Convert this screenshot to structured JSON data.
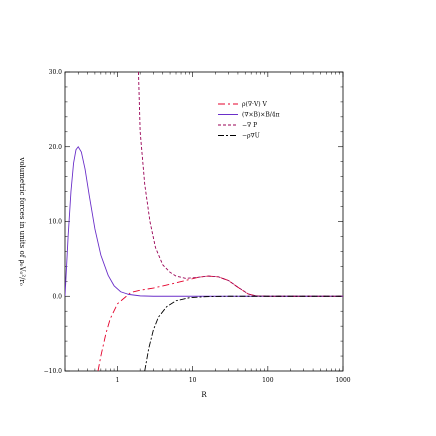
{
  "chart_data": {
    "type": "line",
    "title": "",
    "xlabel": "R",
    "ylabel": "volumetric forces in units of ρ₀V₀²/r₀",
    "xscale": "log",
    "xlim": [
      0.2,
      1000
    ],
    "ylim": [
      -10,
      30
    ],
    "x_ticks": [
      1,
      10,
      100,
      1000
    ],
    "x_tick_labels": [
      "1",
      "10",
      "100",
      "1000"
    ],
    "y_ticks": [
      -10,
      0,
      10,
      20,
      30
    ],
    "y_tick_labels": [
      "−10.0",
      "0.0",
      "10.0",
      "20.0",
      "30.0"
    ],
    "grid": false,
    "legend_position": "top-right",
    "series": [
      {
        "name": "ρ(∇·V) V",
        "color": "#e4002b",
        "dash": "7,3,2,3",
        "points": [
          [
            0.55,
            -10
          ],
          [
            0.6,
            -8
          ],
          [
            0.7,
            -5
          ],
          [
            0.8,
            -3
          ],
          [
            1.0,
            -1
          ],
          [
            1.5,
            0.5
          ],
          [
            2,
            0.8
          ],
          [
            3,
            1.1
          ],
          [
            5,
            1.6
          ],
          [
            8,
            2.1
          ],
          [
            12,
            2.55
          ],
          [
            16,
            2.7
          ],
          [
            22,
            2.6
          ],
          [
            30,
            2.1
          ],
          [
            40,
            1.2
          ],
          [
            55,
            0.3
          ],
          [
            70,
            0.05
          ],
          [
            100,
            0
          ],
          [
            1000,
            0
          ]
        ]
      },
      {
        "name": "(∇×B)×B/4π",
        "color": "#6a2fc9",
        "dash": "",
        "points": [
          [
            0.2,
            0
          ],
          [
            0.22,
            8
          ],
          [
            0.24,
            14
          ],
          [
            0.26,
            17.8
          ],
          [
            0.28,
            19.6
          ],
          [
            0.3,
            20
          ],
          [
            0.33,
            19.3
          ],
          [
            0.37,
            17
          ],
          [
            0.42,
            13.5
          ],
          [
            0.5,
            9
          ],
          [
            0.6,
            5.5
          ],
          [
            0.75,
            2.8
          ],
          [
            0.9,
            1.4
          ],
          [
            1.1,
            0.6
          ],
          [
            1.4,
            0.25
          ],
          [
            2,
            0.05
          ],
          [
            3,
            0
          ],
          [
            10,
            0
          ],
          [
            1000,
            0
          ]
        ]
      },
      {
        "name": "−∇ P",
        "color": "#990055",
        "dash": "3,2",
        "points": [
          [
            1.9,
            30
          ],
          [
            2,
            22
          ],
          [
            2.3,
            15
          ],
          [
            2.7,
            10
          ],
          [
            3.2,
            6.5
          ],
          [
            4,
            4.2
          ],
          [
            5,
            3.2
          ],
          [
            6,
            2.7
          ],
          [
            8,
            2.4
          ],
          [
            11,
            2.5
          ],
          [
            16,
            2.7
          ],
          [
            22,
            2.6
          ],
          [
            30,
            2.1
          ],
          [
            40,
            1.2
          ],
          [
            55,
            0.3
          ],
          [
            70,
            0.05
          ],
          [
            100,
            0
          ],
          [
            1000,
            0
          ]
        ]
      },
      {
        "name": "−ρ∇U",
        "color": "#000000",
        "dash": "6,2,2,2",
        "points": [
          [
            2.3,
            -10
          ],
          [
            2.6,
            -7
          ],
          [
            3,
            -4.5
          ],
          [
            3.5,
            -2.8
          ],
          [
            4.5,
            -1.4
          ],
          [
            6,
            -0.6
          ],
          [
            9,
            -0.2
          ],
          [
            15,
            -0.05
          ],
          [
            30,
            0
          ],
          [
            1000,
            0
          ]
        ]
      }
    ]
  }
}
